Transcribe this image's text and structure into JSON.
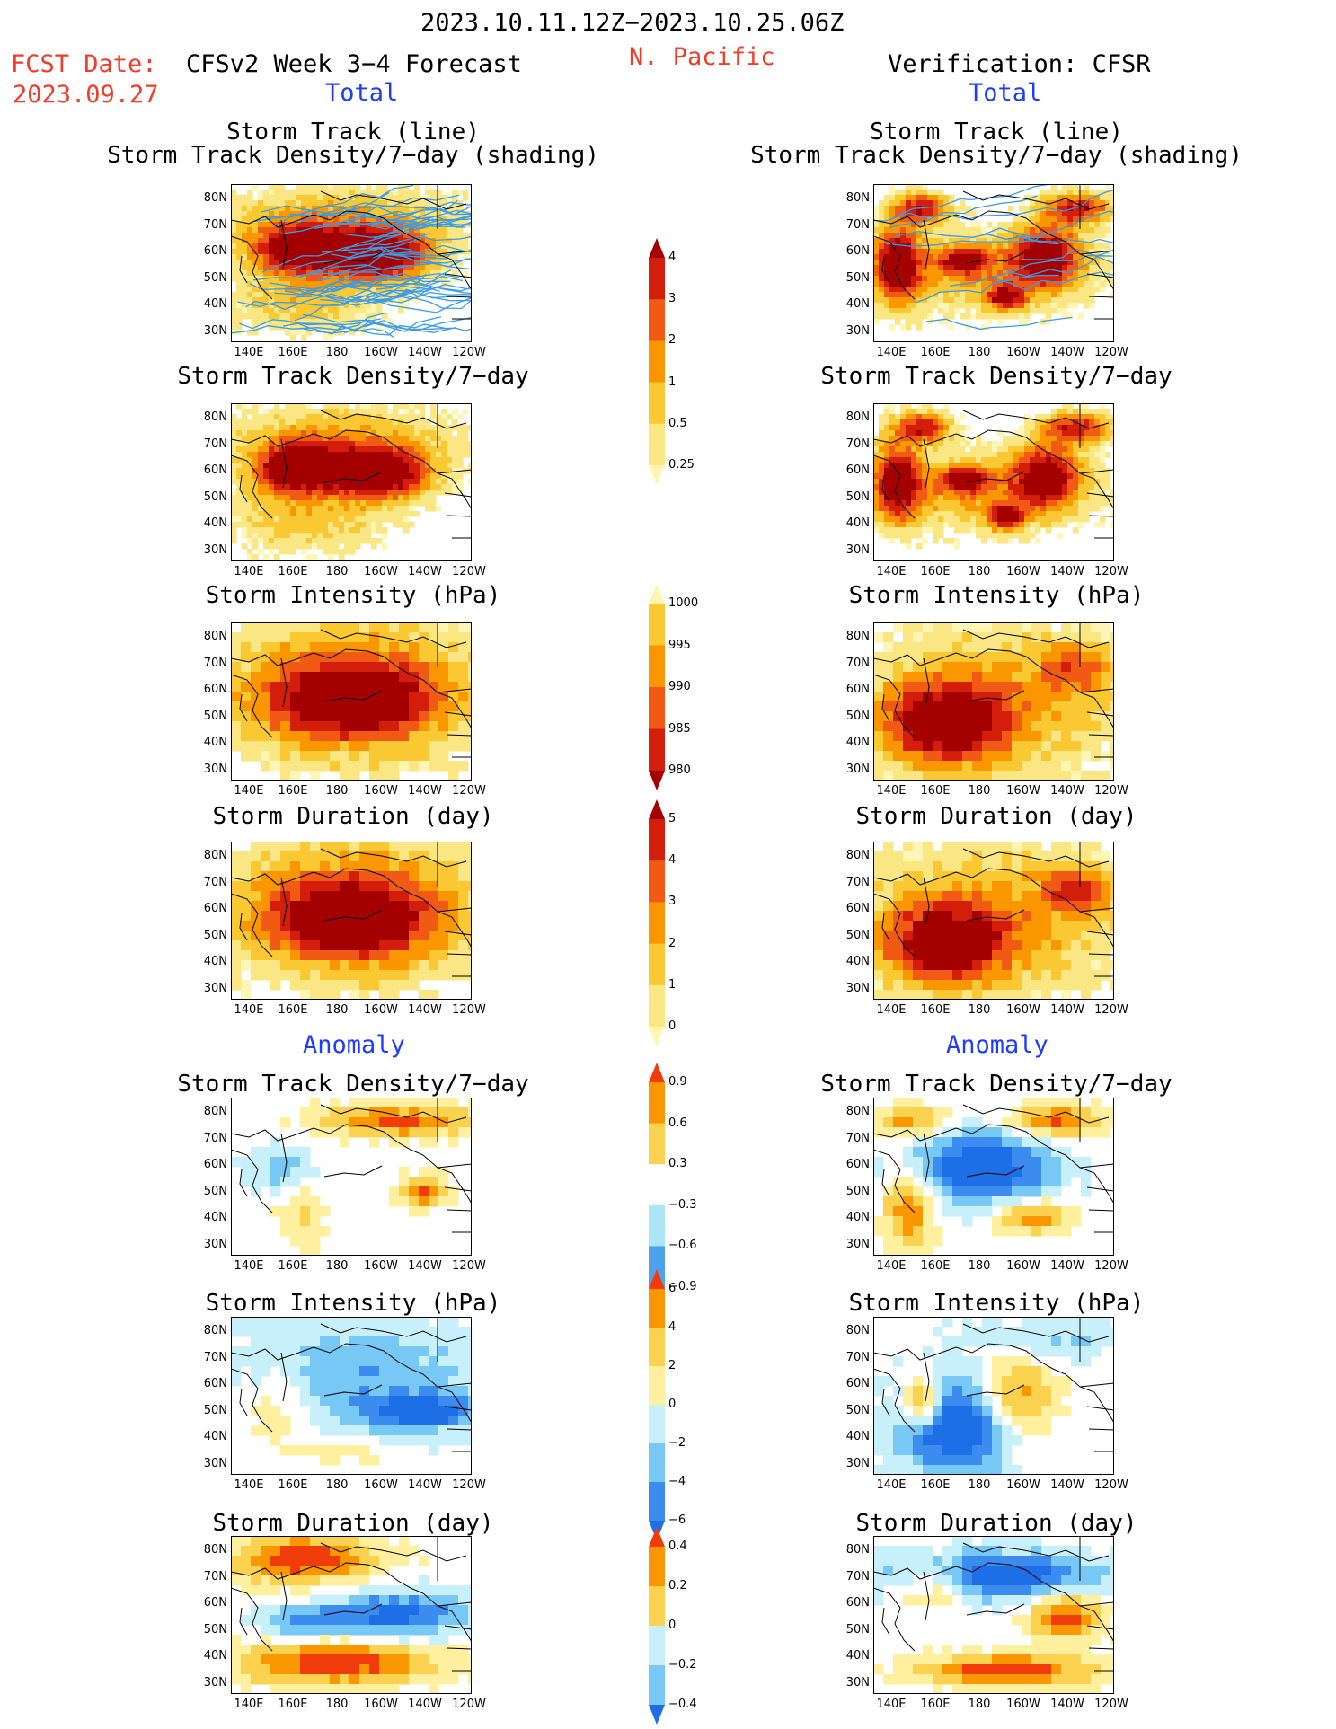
{
  "header": {
    "period": "2023.10.11.12Z−2023.10.25.06Z",
    "fcst_date_label": "FCST Date:",
    "fcst_date": "2023.09.27",
    "model_title": "CFSv2 Week 3−4 Forecast",
    "region": "N. Pacific",
    "verification_title": "Verification: CFSR"
  },
  "sections": {
    "total_left": "Total",
    "total_right": "Total",
    "anomaly_left": "Anomaly",
    "anomaly_right": "Anomaly"
  },
  "panel_titles": {
    "track_line": "Storm Track (line)",
    "track_shading": "Storm Track Density/7−day (shading)",
    "density": "Storm Track Density/7−day",
    "intensity": "Storm Intensity (hPa)",
    "duration": "Storm Duration (day)"
  },
  "axes": {
    "lat_ticks": [
      "80N",
      "70N",
      "60N",
      "50N",
      "40N",
      "30N"
    ],
    "lon_ticks": [
      "140E",
      "160E",
      "180",
      "160W",
      "140W",
      "120W"
    ]
  },
  "colorbars": [
    {
      "id": "density",
      "labels": [
        "4",
        "3",
        "2",
        "1",
        "0.5",
        "0.25"
      ],
      "colors": [
        "#a50000",
        "#d21e0a",
        "#f05a14",
        "#fa9600",
        "#fac832",
        "#fae682",
        "#fff5b4"
      ]
    },
    {
      "id": "intensity",
      "labels": [
        "1000",
        "995",
        "990",
        "985",
        "980"
      ],
      "colors": [
        "#fff5b4",
        "#fac832",
        "#fa9600",
        "#f05a14",
        "#d21e0a",
        "#a50000"
      ]
    },
    {
      "id": "duration",
      "labels": [
        "5",
        "4",
        "3",
        "2",
        "1",
        "0"
      ],
      "colors": [
        "#a50000",
        "#d21e0a",
        "#f05a14",
        "#fa9600",
        "#fac832",
        "#fae682",
        "#fff5b4"
      ]
    },
    {
      "id": "density_anom",
      "labels": [
        "0.9",
        "0.6",
        "0.3",
        "−0.3",
        "−0.6",
        "−0.9"
      ],
      "colors": [
        "#f03c0a",
        "#fa9600",
        "#fad250",
        "#ffffff",
        "#aae6f5",
        "#50a0f0",
        "#1e6ee6"
      ]
    },
    {
      "id": "intensity_anom",
      "labels": [
        "6",
        "4",
        "2",
        "0",
        "−2",
        "−4",
        "−6"
      ],
      "colors": [
        "#f03c0a",
        "#fa9600",
        "#fad250",
        "#fff0a0",
        "#c8f0fa",
        "#78c8f5",
        "#3c8cf0",
        "#1e6ee6"
      ]
    },
    {
      "id": "duration_anom",
      "labels": [
        "0.4",
        "0.2",
        "0",
        "−0.2",
        "−0.4"
      ],
      "colors": [
        "#f03c0a",
        "#fa9600",
        "#fad250",
        "#c8f0fa",
        "#78c8f5",
        "#1e6ee6"
      ]
    }
  ]
}
